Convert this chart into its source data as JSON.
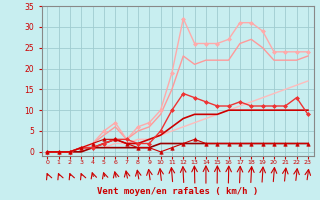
{
  "background_color": "#c8eef0",
  "grid_color": "#a0ccd0",
  "xlabel": "Vent moyen/en rafales ( km/h )",
  "xlabel_color": "#cc0000",
  "tick_color": "#cc0000",
  "xlim": [
    -0.5,
    23.5
  ],
  "ylim": [
    -1,
    35
  ],
  "yticks": [
    0,
    5,
    10,
    15,
    20,
    25,
    30,
    35
  ],
  "xticks": [
    0,
    1,
    2,
    3,
    4,
    5,
    6,
    7,
    8,
    9,
    10,
    11,
    12,
    13,
    14,
    15,
    16,
    17,
    18,
    19,
    20,
    21,
    22,
    23
  ],
  "series": [
    {
      "x": [
        0,
        1,
        2,
        3,
        4,
        5,
        6,
        7,
        8,
        9,
        10,
        11,
        12,
        13,
        14,
        15,
        16,
        17,
        18,
        19,
        20,
        21,
        22,
        23
      ],
      "y": [
        0,
        0,
        0,
        0,
        1,
        1,
        2,
        2,
        3,
        3,
        4,
        5,
        6,
        7,
        8,
        9,
        10,
        11,
        12,
        13,
        14,
        15,
        16,
        17
      ],
      "color": "#ffbbbb",
      "linewidth": 1.0,
      "marker": null,
      "zorder": 1
    },
    {
      "x": [
        0,
        1,
        2,
        3,
        4,
        5,
        6,
        7,
        8,
        9,
        10,
        11,
        12,
        13,
        14,
        15,
        16,
        17,
        18,
        19,
        20,
        21,
        22,
        23
      ],
      "y": [
        0,
        0,
        0,
        1,
        2,
        5,
        7,
        3,
        6,
        7,
        10,
        19,
        32,
        26,
        26,
        26,
        27,
        31,
        31,
        29,
        24,
        24,
        24,
        24
      ],
      "color": "#ffaaaa",
      "linewidth": 1.0,
      "marker": "D",
      "markersize": 2.0,
      "zorder": 2
    },
    {
      "x": [
        0,
        1,
        2,
        3,
        4,
        5,
        6,
        7,
        8,
        9,
        10,
        11,
        12,
        13,
        14,
        15,
        16,
        17,
        18,
        19,
        20,
        21,
        22,
        23
      ],
      "y": [
        0,
        0,
        0,
        1,
        2,
        4,
        6,
        3,
        5,
        6,
        9,
        15,
        23,
        21,
        22,
        22,
        22,
        26,
        27,
        25,
        22,
        22,
        22,
        23
      ],
      "color": "#ff9999",
      "linewidth": 1.0,
      "marker": null,
      "zorder": 1
    },
    {
      "x": [
        0,
        1,
        2,
        3,
        4,
        5,
        6,
        7,
        8,
        9,
        10,
        11,
        12,
        13,
        14,
        15,
        16,
        17,
        18,
        19,
        20,
        21,
        22,
        23
      ],
      "y": [
        0,
        0,
        0,
        1,
        1,
        2,
        3,
        3,
        2,
        2,
        5,
        10,
        14,
        13,
        12,
        11,
        11,
        12,
        11,
        11,
        11,
        11,
        13,
        9
      ],
      "color": "#ee3333",
      "linewidth": 1.0,
      "marker": "D",
      "markersize": 2.0,
      "zorder": 3
    },
    {
      "x": [
        0,
        1,
        2,
        3,
        4,
        5,
        6,
        7,
        8,
        9,
        10,
        11,
        12,
        13,
        14,
        15,
        16,
        17,
        18,
        19,
        20,
        21,
        22,
        23
      ],
      "y": [
        0,
        0,
        0,
        1,
        1,
        2,
        3,
        2,
        2,
        3,
        4,
        6,
        8,
        9,
        9,
        9,
        10,
        10,
        10,
        10,
        10,
        10,
        10,
        10
      ],
      "color": "#cc0000",
      "linewidth": 1.2,
      "marker": null,
      "zorder": 2
    },
    {
      "x": [
        0,
        1,
        2,
        3,
        4,
        5,
        6,
        7,
        8,
        9,
        10,
        11,
        12,
        13,
        14,
        15,
        16,
        17,
        18,
        19,
        20,
        21,
        22,
        23
      ],
      "y": [
        0,
        0,
        0,
        1,
        2,
        3,
        3,
        2,
        1,
        1,
        0,
        1,
        2,
        3,
        2,
        2,
        2,
        2,
        2,
        2,
        2,
        2,
        2,
        2
      ],
      "color": "#cc0000",
      "linewidth": 0.8,
      "marker": "^",
      "markersize": 2.5,
      "zorder": 4
    },
    {
      "x": [
        0,
        1,
        2,
        3,
        4,
        5,
        6,
        7,
        8,
        9,
        10,
        11,
        12,
        13,
        14,
        15,
        16,
        17,
        18,
        19,
        20,
        21,
        22,
        23
      ],
      "y": [
        0,
        0,
        0,
        0,
        1,
        1,
        1,
        1,
        1,
        1,
        2,
        2,
        2,
        2,
        2,
        2,
        2,
        2,
        2,
        2,
        2,
        2,
        2,
        2
      ],
      "color": "#990000",
      "linewidth": 1.2,
      "marker": null,
      "zorder": 1
    }
  ],
  "arrow_angles": [
    160,
    160,
    160,
    160,
    155,
    155,
    150,
    145,
    140,
    135,
    130,
    120,
    110,
    100,
    90,
    85,
    80,
    75,
    70,
    65,
    60,
    55,
    50,
    45
  ]
}
